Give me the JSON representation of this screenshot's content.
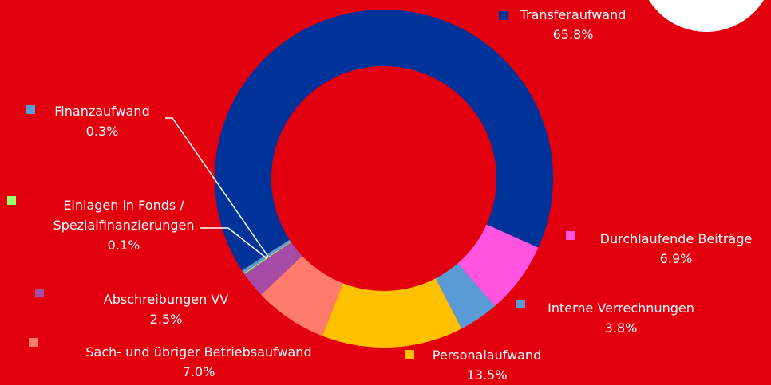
{
  "chart_data": {
    "type": "donut",
    "categories": [
      "Transferaufwand",
      "Durchlaufende Beiträge",
      "Interne Verrechnungen",
      "Personalaufwand",
      "Sach- und übriger Betriebsaufwand",
      "Abschreibungen VV",
      "Einlagen in Fonds / Spezialfinanzierungen",
      "Finanzaufwand"
    ],
    "values": [
      65.8,
      6.9,
      3.8,
      13.5,
      7.0,
      2.5,
      0.1,
      0.3
    ],
    "value_labels": [
      "65.8%",
      "6.9%",
      "3.8%",
      "13.5%",
      "7.0%",
      "2.5%",
      "0.1%",
      "0.3%"
    ],
    "colors": [
      "#003399",
      "#ff55e0",
      "#5b9bd5",
      "#ffc000",
      "#ff7b6b",
      "#a64ca6",
      "#99ff66",
      "#5b9bd5"
    ]
  }
}
